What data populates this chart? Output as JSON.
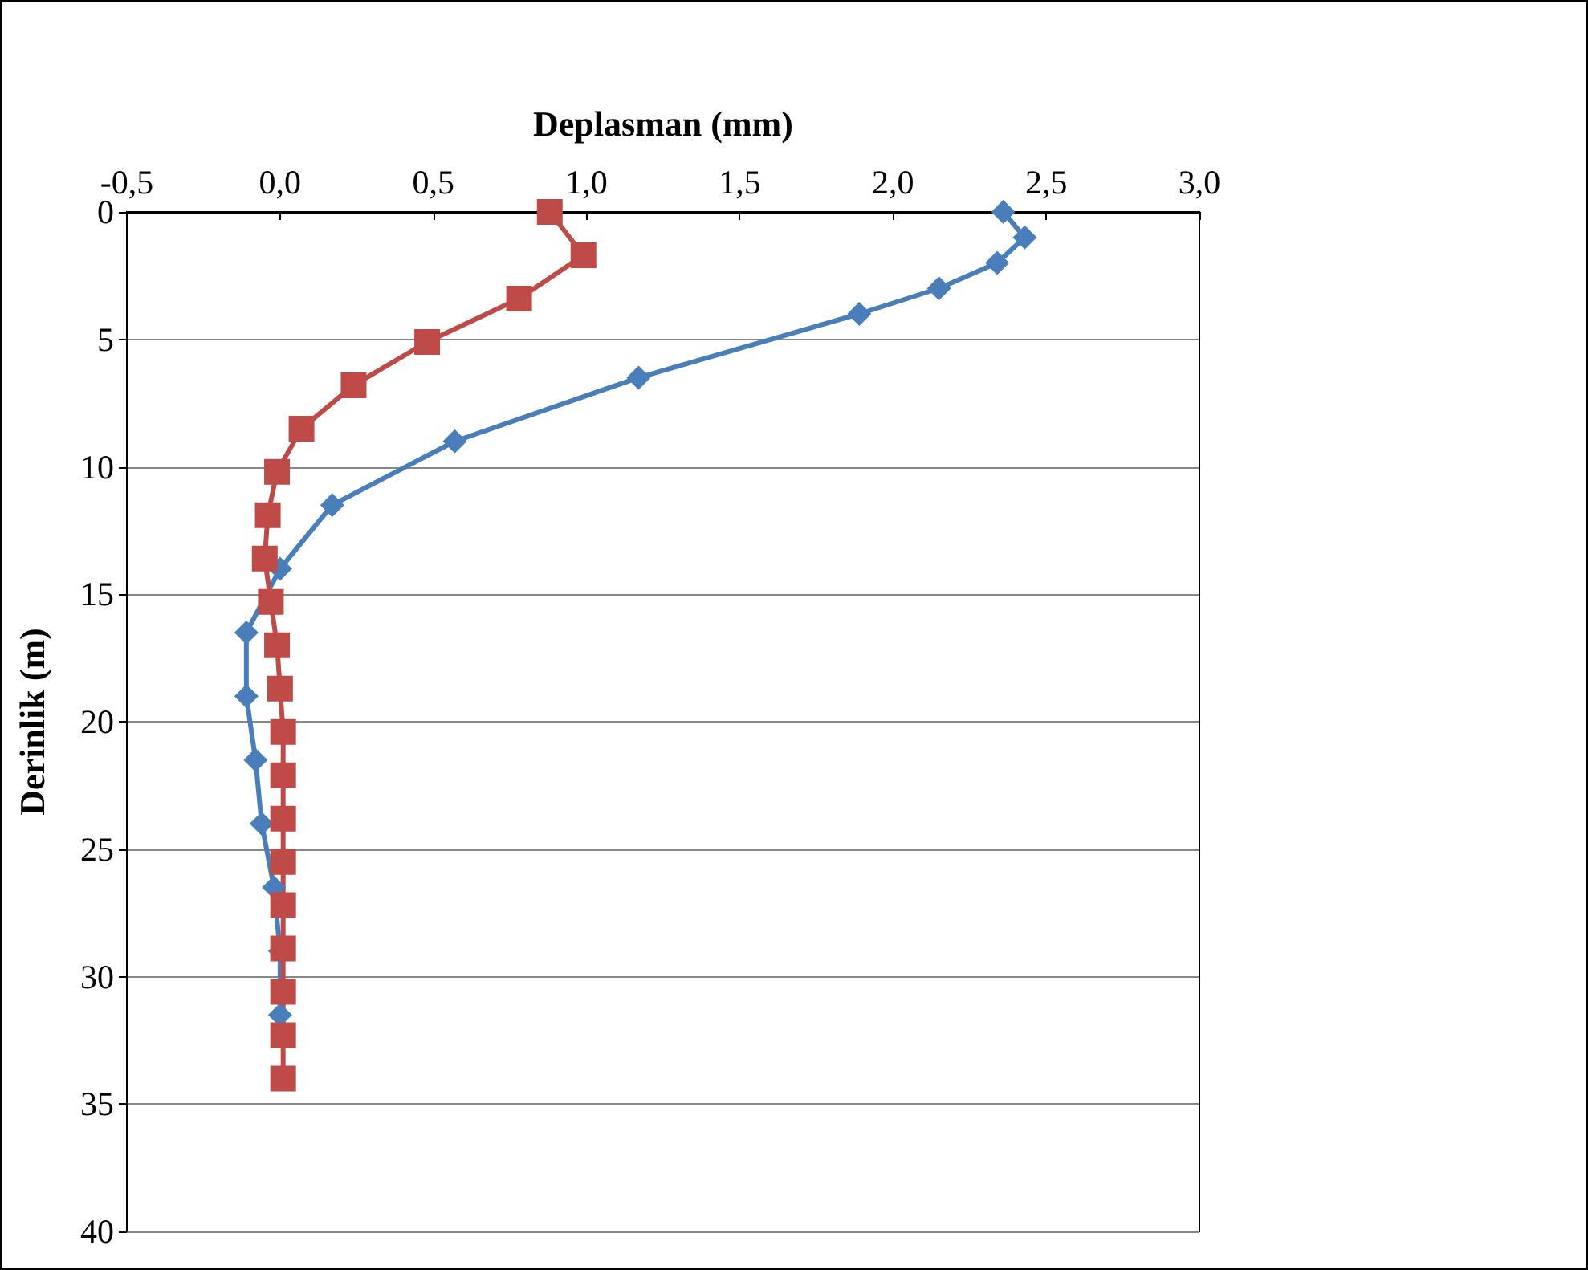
{
  "chart_data": {
    "type": "line",
    "orientation": "horizontal",
    "xlabel": "Deplasman (mm)",
    "ylabel": "Derinlik (m)",
    "xlim": [
      -0.5,
      3.0
    ],
    "xticks": [
      {
        "value": -0.5,
        "label": "-0,5"
      },
      {
        "value": 0,
        "label": "0,0"
      },
      {
        "value": 0.5,
        "label": "0,5"
      },
      {
        "value": 1.0,
        "label": "1,0"
      },
      {
        "value": 1.5,
        "label": "1,5"
      },
      {
        "value": 2.0,
        "label": "2,0"
      },
      {
        "value": 2.5,
        "label": "2,5"
      },
      {
        "value": 3.0,
        "label": "3,0"
      }
    ],
    "ylim": [
      40,
      0
    ],
    "yticks": [
      0,
      5,
      10,
      15,
      20,
      25,
      30,
      35,
      40
    ],
    "grid": "y",
    "line_style": "solid",
    "series": [
      {
        "color": "#4a7ebb",
        "marker": "diamond",
        "values": [
          2.36,
          2.43,
          2.34,
          2.15,
          1.89,
          1.17,
          0.57,
          0.17,
          0,
          -0.11,
          -0.11,
          -0.08,
          -0.06,
          -0.02,
          0,
          0
        ],
        "x": [
          0,
          1,
          2,
          3,
          4,
          6.5,
          9,
          11.5,
          14,
          16.5,
          19,
          21.5,
          24,
          26.5,
          29,
          31.5
        ]
      },
      {
        "color": "#be4b48",
        "marker": "square",
        "values": [
          0.88,
          0.99,
          0.78,
          0.48,
          0.24,
          0.07,
          -0.01,
          -0.04,
          -0.05,
          -0.03,
          -0.01,
          0,
          0.01,
          0.01,
          0.01,
          0.01,
          0.01,
          0.01,
          0.01,
          0.01,
          0.01
        ],
        "x": [
          0,
          1.7,
          3.4,
          5.1,
          6.8,
          8.5,
          10.2,
          11.9,
          13.6,
          15.3,
          17,
          18.7,
          20.4,
          22.1,
          23.8,
          25.5,
          27.2,
          28.9,
          30.6,
          32.3,
          34
        ]
      }
    ]
  }
}
